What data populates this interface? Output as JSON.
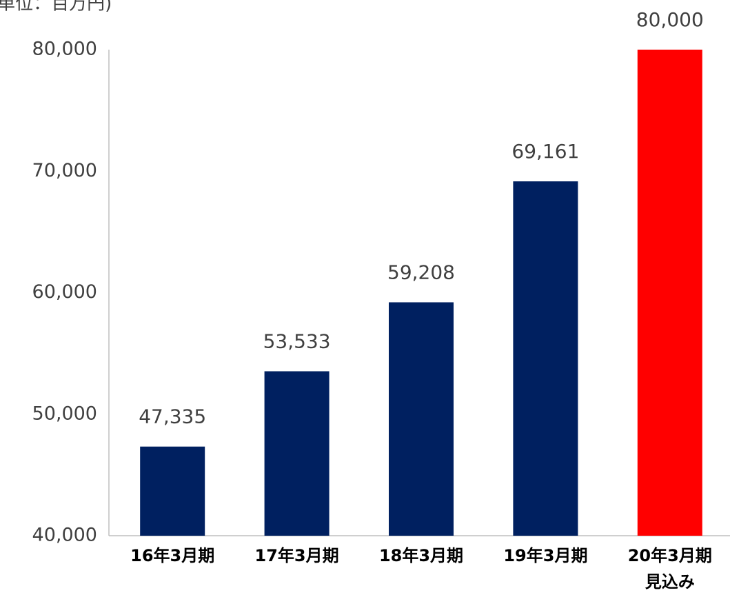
{
  "chart_data": {
    "type": "bar",
    "unit_label": "(単位：百万円)",
    "categories": [
      "16年3月期",
      "17年3月期",
      "18年3月期",
      "19年3月期",
      "20年3月期\n見込み"
    ],
    "values": [
      47335,
      53533,
      59208,
      69161,
      80000
    ],
    "value_labels": [
      "47,335",
      "53,533",
      "59,208",
      "69,161",
      "80,000"
    ],
    "colors": [
      "#002060",
      "#002060",
      "#002060",
      "#002060",
      "#ff0000"
    ],
    "ylim": [
      40000,
      80000
    ],
    "yticks": [
      {
        "value": 40000,
        "label": "40,000"
      },
      {
        "value": 50000,
        "label": "50,000"
      },
      {
        "value": 60000,
        "label": "60,000"
      },
      {
        "value": 70000,
        "label": "70,000"
      },
      {
        "value": 80000,
        "label": "80,000"
      }
    ],
    "grid": false
  }
}
